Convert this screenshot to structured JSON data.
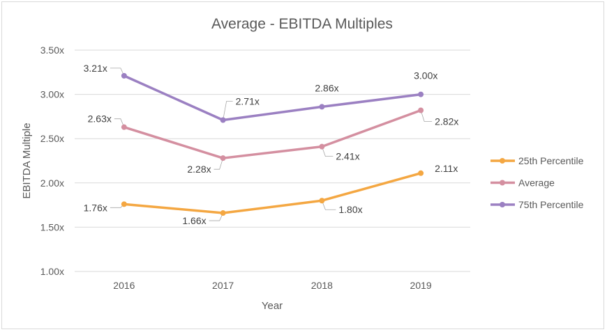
{
  "chart_data": {
    "type": "line",
    "title": "Average - EBITDA Multiples",
    "xlabel": "Year",
    "ylabel": "EBITDA Multiple",
    "categories": [
      "2016",
      "2017",
      "2018",
      "2019"
    ],
    "ylim": [
      1.0,
      3.5
    ],
    "ytick_values": [
      1.0,
      1.5,
      2.0,
      2.5,
      3.0,
      3.5
    ],
    "ytick_labels": [
      "1.00x",
      "1.50x",
      "2.00x",
      "2.50x",
      "3.00x",
      "3.50x"
    ],
    "grid": true,
    "legend_position": "right",
    "series": [
      {
        "name": "25th Percentile",
        "color": "#f4a742",
        "values": [
          1.76,
          1.66,
          1.8,
          2.11
        ],
        "labels": [
          "1.76x",
          "1.66x",
          "1.80x",
          "2.11x"
        ]
      },
      {
        "name": "Average",
        "color": "#d48fa0",
        "values": [
          2.63,
          2.28,
          2.41,
          2.82
        ],
        "labels": [
          "2.63x",
          "2.28x",
          "2.41x",
          "2.82x"
        ]
      },
      {
        "name": "75th Percentile",
        "color": "#9b80c2",
        "values": [
          3.21,
          2.71,
          2.86,
          3.0
        ],
        "labels": [
          "3.21x",
          "2.71x",
          "2.86x",
          "3.00x"
        ]
      }
    ]
  }
}
